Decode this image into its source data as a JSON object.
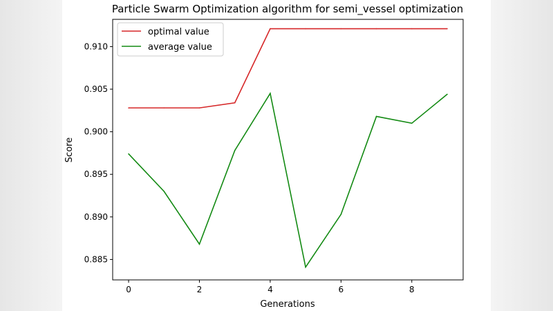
{
  "chart_data": {
    "type": "line",
    "title": "Particle Swarm Optimization algorithm for semi_vessel optimization",
    "xlabel": "Generations",
    "ylabel": "Score",
    "x": [
      0,
      1,
      2,
      3,
      4,
      5,
      6,
      7,
      8,
      9
    ],
    "xlim": [
      -0.45,
      9.45
    ],
    "ylim": [
      0.8826,
      0.9132
    ],
    "xticks": [
      0,
      2,
      4,
      6,
      8
    ],
    "xtick_labels": [
      "0",
      "2",
      "4",
      "6",
      "8"
    ],
    "yticks": [
      0.885,
      0.89,
      0.895,
      0.9,
      0.905,
      0.91
    ],
    "ytick_labels": [
      "0.885",
      "0.890",
      "0.895",
      "0.900",
      "0.905",
      "0.910"
    ],
    "grid": false,
    "legend_position": "top-left",
    "series": [
      {
        "name": "optimal value",
        "color": "#d62728",
        "values": [
          0.9028,
          0.9028,
          0.9028,
          0.9034,
          0.9121,
          0.9121,
          0.9121,
          0.9121,
          0.9121,
          0.9121
        ]
      },
      {
        "name": "average value",
        "color": "#138a13",
        "values": [
          0.8974,
          0.893,
          0.8868,
          0.8978,
          0.9045,
          0.8841,
          0.8903,
          0.9018,
          0.901,
          0.9044
        ]
      }
    ]
  }
}
